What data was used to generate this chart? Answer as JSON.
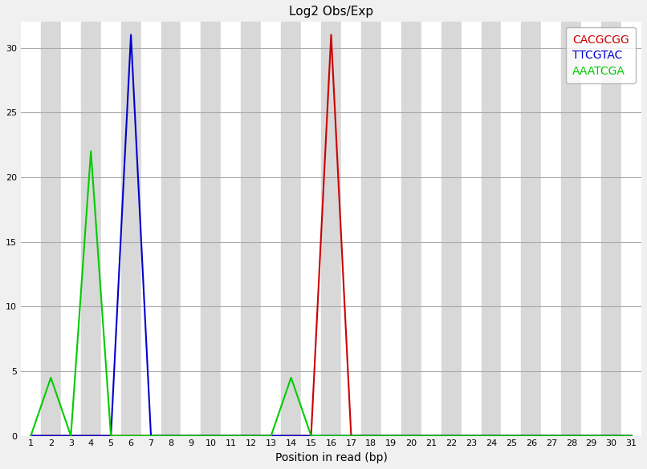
{
  "title": "Log2 Obs/Exp",
  "xlabel": "Position in read (bp)",
  "x_positions": [
    1,
    2,
    3,
    4,
    5,
    6,
    7,
    8,
    9,
    10,
    11,
    12,
    13,
    14,
    15,
    16,
    17,
    18,
    19,
    20,
    21,
    22,
    23,
    24,
    25,
    26,
    27,
    28,
    29,
    30,
    31
  ],
  "red_values": [
    0,
    0,
    0,
    0,
    0,
    0,
    0,
    0,
    0,
    0,
    0,
    0,
    0,
    0,
    0,
    31,
    0,
    0,
    0,
    0,
    0,
    0,
    0,
    0,
    0,
    0,
    0,
    0,
    0,
    0,
    0
  ],
  "blue_values": [
    0,
    0,
    0,
    0,
    0,
    31,
    0,
    0,
    0,
    0,
    0,
    0,
    0,
    0,
    0,
    0,
    0,
    0,
    0,
    0,
    0,
    0,
    0,
    0,
    0,
    0,
    0,
    0,
    0,
    0,
    0
  ],
  "green_values": [
    0,
    4.5,
    0,
    22,
    0,
    0,
    0,
    0,
    0,
    0,
    0,
    0,
    0,
    4.5,
    0,
    0,
    0,
    0,
    0,
    0,
    0,
    0,
    0,
    0,
    0,
    0,
    0,
    0,
    0,
    0,
    0
  ],
  "red_color": "#cc0000",
  "blue_color": "#0000cc",
  "green_color": "#00cc00",
  "red_label": "CACGCGG",
  "blue_label": "TTCGTAC",
  "green_label": "AAATCGA",
  "ylim": [
    0,
    32
  ],
  "yticks": [
    0,
    5,
    10,
    15,
    20,
    25,
    30
  ],
  "stripe_light": "#ffffff",
  "stripe_dark": "#d8d8d8",
  "grid_color": "#aaaaaa",
  "fig_facecolor": "#f0f0f0",
  "title_fontsize": 11,
  "legend_fontsize": 10,
  "tick_fontsize": 8,
  "axis_fontsize": 10,
  "linewidth": 1.5
}
